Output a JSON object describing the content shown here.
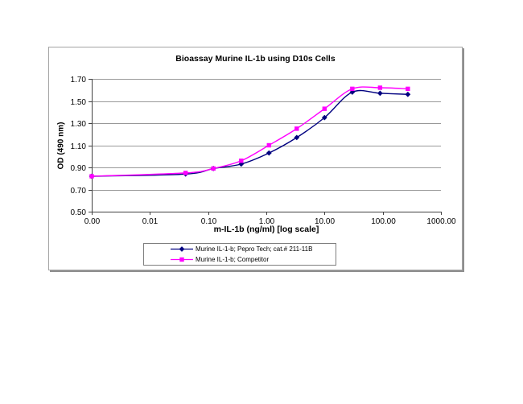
{
  "chart": {
    "title": "Bioassay Murine IL-1b using D10s Cells"
  },
  "chart_data": {
    "type": "line",
    "title": "Bioassay Murine IL-1b using D10s Cells",
    "xlabel": "m-IL-1b (ng/ml) [log scale]",
    "ylabel": "OD (490 nm)",
    "x_scale": "log",
    "xlim": [
      0.001,
      1000
    ],
    "ylim": [
      0.5,
      1.7
    ],
    "x_tick_values": [
      0.001,
      0.01,
      0.1,
      1,
      10,
      100,
      1000
    ],
    "x_tick_labels": [
      "0.00",
      "0.01",
      "0.10",
      "1.00",
      "10.00",
      "100.00",
      "1000.00"
    ],
    "y_tick_values": [
      0.5,
      0.7,
      0.9,
      1.1,
      1.3,
      1.5,
      1.7
    ],
    "y_tick_labels": [
      "0.50",
      "0.70",
      "0.90",
      "1.10",
      "1.30",
      "1.50",
      "1.70"
    ],
    "grid": "horizontal-only",
    "legend_position": "bottom-center",
    "x": [
      0.001,
      0.041,
      0.123,
      0.37,
      1.11,
      3.33,
      10,
      30,
      90,
      270
    ],
    "series": [
      {
        "name": "Murine IL-1-b; Pepro Tech; cat.# 211-11B",
        "color": "#000080",
        "marker": "diamond",
        "values": [
          0.82,
          0.84,
          0.89,
          0.93,
          1.03,
          1.17,
          1.35,
          1.58,
          1.57,
          1.56
        ]
      },
      {
        "name": "Murine IL-1-b; Competitor",
        "color": "#FF00FF",
        "marker": "square",
        "values": [
          0.82,
          0.85,
          0.89,
          0.96,
          1.1,
          1.25,
          1.43,
          1.61,
          1.62,
          1.61
        ]
      }
    ]
  },
  "colors": {
    "background": "#FFFFFF",
    "frame_border": "#A3A3A3",
    "frame_shadow": "#8F8F8F",
    "gridline": "#999999",
    "axis": "#404040",
    "legend_border": "#7F7F7F",
    "text": "#000000",
    "series_peprotech": "#000080",
    "series_competitor": "#FF00FF"
  }
}
